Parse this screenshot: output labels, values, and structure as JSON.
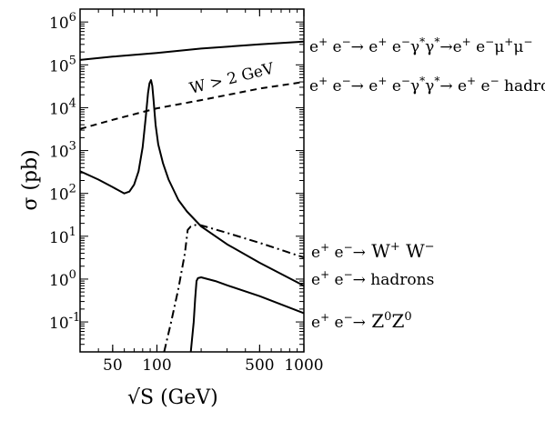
{
  "chart_data": {
    "type": "line",
    "title": "",
    "xlabel": "√S (GeV)",
    "ylabel": "σ (pb)",
    "xscale": "log",
    "yscale": "log",
    "xlim": [
      30,
      1000
    ],
    "ylim": [
      0.02,
      2000000
    ],
    "x_ticks": [
      {
        "value": 50,
        "label": "50"
      },
      {
        "value": 100,
        "label": "100"
      },
      {
        "value": 500,
        "label": "500"
      },
      {
        "value": 1000,
        "label": "1000"
      }
    ],
    "y_ticks": [
      {
        "value": 0.1,
        "base": "10",
        "exp": "-1"
      },
      {
        "value": 1,
        "base": "10",
        "exp": "0"
      },
      {
        "value": 10,
        "base": "10",
        "exp": "1"
      },
      {
        "value": 100,
        "base": "10",
        "exp": "2"
      },
      {
        "value": 1000,
        "base": "10",
        "exp": "3"
      },
      {
        "value": 10000,
        "base": "10",
        "exp": "4"
      },
      {
        "value": 100000,
        "base": "10",
        "exp": "5"
      },
      {
        "value": 1000000,
        "base": "10",
        "exp": "6"
      }
    ],
    "grid": false,
    "series": [
      {
        "name": "e+e- -> e+e-γ*γ* -> e+e-μ+μ-",
        "style": "solid",
        "x": [
          30,
          50,
          100,
          200,
          500,
          1000
        ],
        "y": [
          130000,
          155000,
          190000,
          240000,
          300000,
          350000
        ]
      },
      {
        "name": "e+e- -> e+e-γ*γ* -> e+e- hadrons",
        "style": "dashed",
        "x": [
          30,
          50,
          100,
          200,
          500,
          1000
        ],
        "y": [
          3200,
          5200,
          9700,
          15000,
          28000,
          40000
        ]
      },
      {
        "name": "e+e- -> hadrons",
        "style": "solid",
        "x": [
          30,
          40,
          50,
          60,
          65,
          70,
          75,
          80,
          84,
          87,
          89,
          91.2,
          93,
          95,
          98,
          102,
          110,
          120,
          140,
          160,
          200,
          300,
          500,
          1000
        ],
        "y": [
          330,
          210,
          140,
          100,
          110,
          160,
          330,
          1200,
          6000,
          22000,
          37000,
          44000,
          32000,
          14000,
          4000,
          1400,
          500,
          210,
          70,
          38,
          17,
          6.5,
          2.4,
          0.7
        ]
      },
      {
        "name": "e+e- -> W+W-",
        "style": "dashdot",
        "x": [
          112,
          125,
          140,
          155,
          162,
          170,
          185,
          200,
          300,
          500,
          1000
        ],
        "y": [
          0.02,
          0.1,
          0.6,
          4,
          14,
          17,
          18.5,
          18,
          12,
          7,
          3.2
        ]
      },
      {
        "name": "e+e- -> Z0Z0",
        "style": "solid",
        "x": [
          170,
          178,
          182,
          186,
          190,
          200,
          250,
          300,
          500,
          1000
        ],
        "y": [
          0.02,
          0.1,
          0.35,
          0.9,
          1.05,
          1.1,
          0.9,
          0.72,
          0.4,
          0.16
        ]
      }
    ],
    "annotations": {
      "cut_label": "W > 2 GeV",
      "mumu": {
        "pre": "e",
        "s1": "+",
        "a": " e",
        "s2": "−",
        "arr": "→",
        "b": " e",
        "s3": "+",
        "c": " e",
        "s4": "−",
        "g1": "γ",
        "s5": "*",
        "g2": "γ",
        "s6": "*",
        "arr2": "→",
        "d": "e",
        "s7": "+",
        "e2": " e",
        "s8": "−",
        "mu1": "μ",
        "s9": "+",
        "mu2": "μ",
        "s10": "−"
      },
      "had2g": {
        "pre": "e",
        "s1": "+",
        "a": " e",
        "s2": "−",
        "arr": "→",
        "b": " e",
        "s3": "+",
        "c": " e",
        "s4": "−",
        "g1": "γ",
        "s5": "*",
        "g2": "γ",
        "s6": "*",
        "arr2": "→",
        "d": " e",
        "s7": "+",
        "e2": " e",
        "s8": "−",
        "tail": " hadrons"
      },
      "ww": {
        "pre": "e",
        "s1": "+",
        "a": " e",
        "s2": "−",
        "arr": "→",
        "w1": " W",
        "s3": "+",
        "w2": " W",
        "s4": "−"
      },
      "had": {
        "pre": "e",
        "s1": "+",
        "a": " e",
        "s2": "−",
        "arr": "→",
        "tail": " hadrons"
      },
      "zz": {
        "pre": "e",
        "s1": "+",
        "a": " e",
        "s2": "−",
        "arr": "→",
        "z1": " Z",
        "s3": "0",
        "z2": "Z",
        "s4": "0"
      }
    }
  }
}
